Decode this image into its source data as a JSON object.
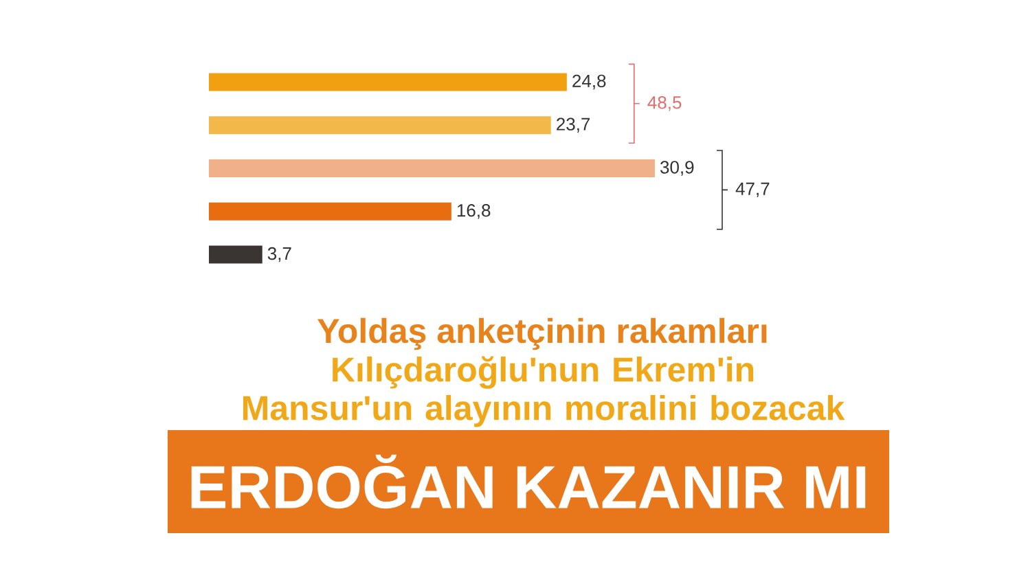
{
  "chart_data": {
    "type": "bar",
    "orientation": "horizontal",
    "title": "Yoldaş anketçinin rakamları",
    "subtitle": "Kılıçdaroğlu'nun Ekrem'in Mansur'un alayının moralini bozacak",
    "categories": [
      null,
      null,
      null,
      null,
      null
    ],
    "values": [
      24.8,
      23.7,
      30.9,
      16.8,
      3.7
    ],
    "value_labels": [
      "24,8",
      "23,7",
      "30,9",
      "16,8",
      "3,7"
    ],
    "colors": [
      "#f0a010",
      "#f2b84a",
      "#f0b08a",
      "#e86c10",
      "#3a3433"
    ],
    "annotations": [
      "48,5",
      "47,7",
      "ERDOĞAN KAZANIR MI"
    ]
  }
}
